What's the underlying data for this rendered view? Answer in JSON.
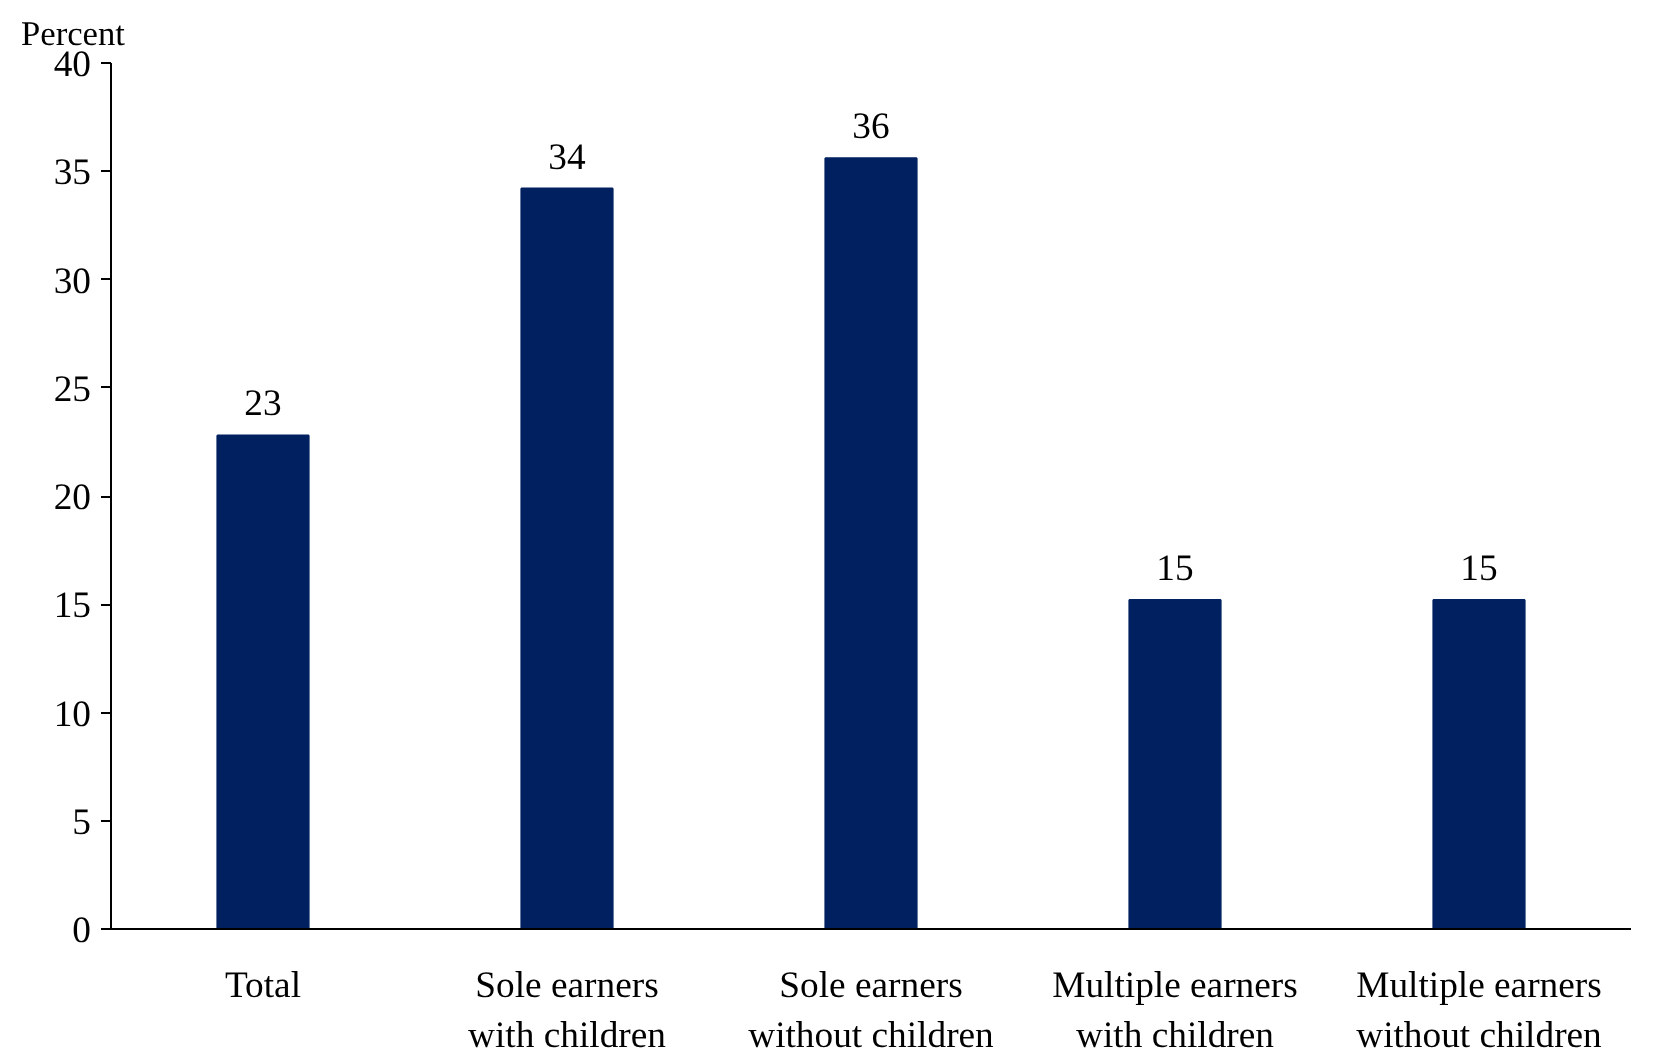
{
  "chart_data": {
    "type": "bar",
    "ylabel": "Percent",
    "categories": [
      "Total",
      "Sole earners\nwith children",
      "Sole earners\nwithout children",
      "Multiple earners\nwith children",
      "Multiple earners\nwithout children"
    ],
    "values": [
      22.8,
      34.2,
      35.6,
      15.2,
      15.2
    ],
    "value_labels": [
      "23",
      "34",
      "36",
      "15",
      "15"
    ],
    "color": "#002060",
    "ylim": [
      0,
      40
    ],
    "yticks": [
      0,
      5,
      10,
      15,
      20,
      25,
      30,
      35,
      40
    ],
    "grid": false
  }
}
